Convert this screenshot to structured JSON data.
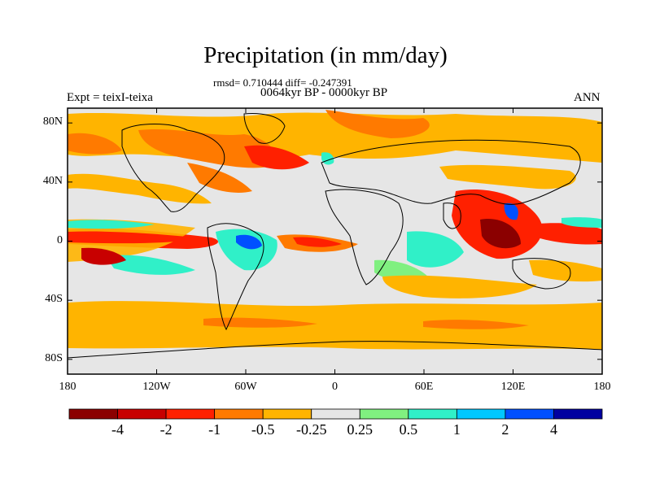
{
  "header": {
    "title": "Precipitation (in mm/day)",
    "stats": "rmsd= 0.710444 diff= -0.247391",
    "period": "0064kyr BP - 0000kyr BP",
    "experiment": "Expt = teixI-teixa",
    "season": "ANN"
  },
  "map": {
    "projection": "cylindrical-equidistant",
    "lon_range": [
      -180,
      180
    ],
    "lat_range": [
      -90,
      90
    ],
    "land_outline_color": "#000000",
    "background_color": "#e6e6e6"
  },
  "axes": {
    "y_ticks": [
      {
        "value": 80,
        "label": "80N"
      },
      {
        "value": 40,
        "label": "40N"
      },
      {
        "value": 0,
        "label": "0"
      },
      {
        "value": -40,
        "label": "40S"
      },
      {
        "value": -80,
        "label": "80S"
      }
    ],
    "x_ticks": [
      {
        "value": -180,
        "label": "180"
      },
      {
        "value": -120,
        "label": "120W"
      },
      {
        "value": -60,
        "label": "60W"
      },
      {
        "value": 0,
        "label": "0"
      },
      {
        "value": 60,
        "label": "60E"
      },
      {
        "value": 120,
        "label": "120E"
      },
      {
        "value": 180,
        "label": "180"
      }
    ]
  },
  "colorbar": {
    "bins": [
      {
        "color": "#8b0000"
      },
      {
        "color": "#c80000"
      },
      {
        "color": "#ff2000"
      },
      {
        "color": "#ff7a00"
      },
      {
        "color": "#ffb400"
      },
      {
        "color": "#e6e6e6"
      },
      {
        "color": "#80f080"
      },
      {
        "color": "#30f0c8"
      },
      {
        "color": "#00c8ff"
      },
      {
        "color": "#0050ff"
      },
      {
        "color": "#0000a0"
      }
    ],
    "labels": [
      "-4",
      "-2",
      "-1",
      "-0.5",
      "-0.25",
      "0.25",
      "0.5",
      "1",
      "2",
      "4"
    ]
  }
}
